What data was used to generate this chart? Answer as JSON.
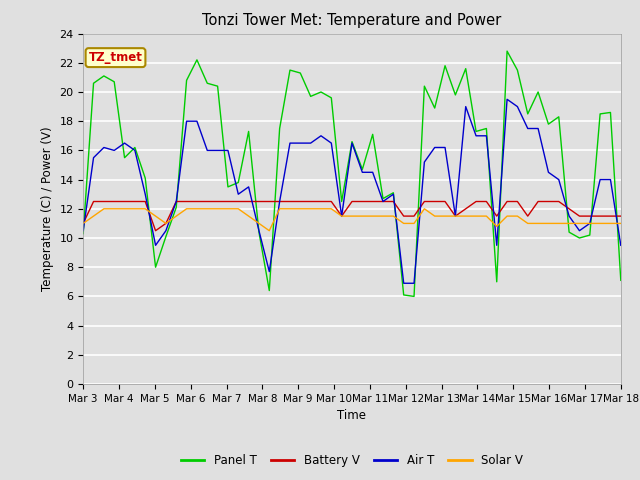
{
  "title": "Tonzi Tower Met: Temperature and Power",
  "ylabel": "Temperature (C) / Power (V)",
  "xlabel": "Time",
  "ylim": [
    0,
    24
  ],
  "yticks": [
    0,
    2,
    4,
    6,
    8,
    10,
    12,
    14,
    16,
    18,
    20,
    22,
    24
  ],
  "xtick_labels": [
    "Mar 3",
    "Mar 4",
    "Mar 5",
    "Mar 6",
    "Mar 7",
    "Mar 8",
    "Mar 9",
    "Mar 10",
    "Mar 11",
    "Mar 12",
    "Mar 13",
    "Mar 14",
    "Mar 15",
    "Mar 16",
    "Mar 17",
    "Mar 18"
  ],
  "annotation_text": "TZ_tmet",
  "annotation_box_color": "#FFFFCC",
  "annotation_text_color": "#CC0000",
  "bg_color": "#E0E0E0",
  "panel_t": [
    10.3,
    20.6,
    21.1,
    20.7,
    15.5,
    16.2,
    14.1,
    8.0,
    10.1,
    12.1,
    20.8,
    22.2,
    20.6,
    20.4,
    13.5,
    13.8,
    17.3,
    10.4,
    6.4,
    17.5,
    21.5,
    21.3,
    19.7,
    20.0,
    19.6,
    12.5,
    16.6,
    14.7,
    17.1,
    12.7,
    13.1,
    6.1,
    6.0,
    20.4,
    18.9,
    21.8,
    19.8,
    21.6,
    17.3,
    17.5,
    7.0,
    22.8,
    21.5,
    18.5,
    20.0,
    17.8,
    18.3,
    10.4,
    10.0,
    10.2,
    18.5,
    18.6,
    7.1
  ],
  "battery_v": [
    11.0,
    12.5,
    12.5,
    12.5,
    12.5,
    12.5,
    12.5,
    10.5,
    11.0,
    12.5,
    12.5,
    12.5,
    12.5,
    12.5,
    12.5,
    12.5,
    12.5,
    12.5,
    12.5,
    12.5,
    12.5,
    12.5,
    12.5,
    12.5,
    12.5,
    11.5,
    12.5,
    12.5,
    12.5,
    12.5,
    12.5,
    11.5,
    11.5,
    12.5,
    12.5,
    12.5,
    11.5,
    12.0,
    12.5,
    12.5,
    11.5,
    12.5,
    12.5,
    11.5,
    12.5,
    12.5,
    12.5,
    12.0,
    11.5,
    11.5,
    11.5,
    11.5,
    11.5
  ],
  "air_t": [
    10.5,
    15.5,
    16.2,
    16.0,
    16.5,
    16.0,
    13.0,
    9.5,
    10.5,
    12.5,
    18.0,
    18.0,
    16.0,
    16.0,
    16.0,
    13.0,
    13.5,
    10.5,
    7.7,
    12.5,
    16.5,
    16.5,
    16.5,
    17.0,
    16.5,
    11.5,
    16.5,
    14.5,
    14.5,
    12.5,
    13.0,
    6.9,
    6.9,
    15.2,
    16.2,
    16.2,
    11.5,
    19.0,
    17.0,
    17.0,
    9.5,
    19.5,
    19.0,
    17.5,
    17.5,
    14.5,
    14.0,
    11.5,
    10.5,
    11.0,
    14.0,
    14.0,
    9.5
  ],
  "solar_v": [
    11.0,
    11.5,
    12.0,
    12.0,
    12.0,
    12.0,
    12.0,
    11.5,
    11.0,
    11.5,
    12.0,
    12.0,
    12.0,
    12.0,
    12.0,
    12.0,
    11.5,
    11.0,
    10.5,
    12.0,
    12.0,
    12.0,
    12.0,
    12.0,
    12.0,
    11.5,
    11.5,
    11.5,
    11.5,
    11.5,
    11.5,
    11.0,
    11.0,
    12.0,
    11.5,
    11.5,
    11.5,
    11.5,
    11.5,
    11.5,
    10.8,
    11.5,
    11.5,
    11.0,
    11.0,
    11.0,
    11.0,
    11.0,
    11.0,
    11.0,
    11.0,
    11.0,
    11.0
  ]
}
